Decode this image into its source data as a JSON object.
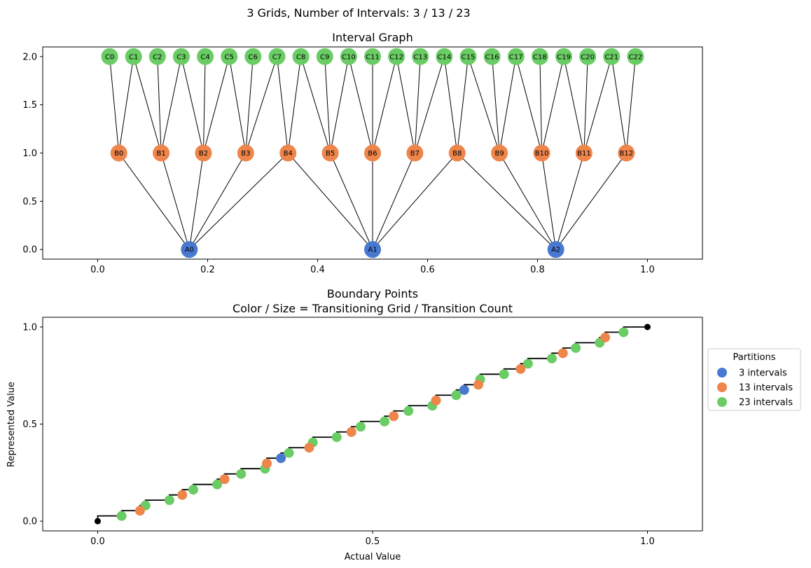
{
  "figure": {
    "suptitle": "3 Grids, Number of Intervals: 3 / 13 / 23"
  },
  "colors": {
    "grid_3": "#4878d0",
    "grid_13": "#ee854a",
    "grid_23": "#6acc64",
    "step": "#000000"
  },
  "chart_data": [
    {
      "type": "network",
      "title": "Interval Graph",
      "xlim": [
        -0.1,
        1.1
      ],
      "ylim": [
        -0.1,
        2.1
      ],
      "x_ticks": [
        0.0,
        0.2,
        0.4,
        0.6,
        0.8,
        1.0
      ],
      "x_tick_labels": [
        "0.0",
        "0.2",
        "0.4",
        "0.6",
        "0.8",
        "1.0"
      ],
      "y_ticks": [
        0.0,
        0.5,
        1.0,
        1.5,
        2.0
      ],
      "y_tick_labels": [
        "0.0",
        "0.5",
        "1.0",
        "1.5",
        "2.0"
      ],
      "levels": [
        {
          "prefix": "A",
          "count": 3,
          "y": 0,
          "color": "#4878d0"
        },
        {
          "prefix": "B",
          "count": 13,
          "y": 1,
          "color": "#ee854a"
        },
        {
          "prefix": "C",
          "count": 23,
          "y": 2,
          "color": "#6acc64"
        }
      ],
      "edge_rule": "nodes on adjacent levels are connected when their intervals overlap"
    },
    {
      "type": "scatter",
      "title": "Boundary Points",
      "subtitle": "Color / Size = Transitioning Grid / Transition Count",
      "xlabel": "Actual Value",
      "ylabel": "Represented Value",
      "xlim": [
        -0.1,
        1.1
      ],
      "ylim": [
        -0.05,
        1.05
      ],
      "x_ticks": [
        0.0,
        0.5,
        1.0
      ],
      "x_tick_labels": [
        "0.0",
        "0.5",
        "1.0"
      ],
      "y_ticks": [
        0.0,
        0.5,
        1.0
      ],
      "y_tick_labels": [
        "0.0",
        "0.5",
        "1.0"
      ],
      "legend_title": "Partitions",
      "legend_position": "right, outside plot",
      "series": [
        {
          "name": "3 intervals",
          "count": 3,
          "color": "#4878d0"
        },
        {
          "name": "13 intervals",
          "count": 13,
          "color": "#ee854a"
        },
        {
          "name": "23 intervals",
          "count": 23,
          "color": "#6acc64"
        }
      ],
      "endpoints": [
        [
          0,
          0
        ],
        [
          1,
          1
        ]
      ],
      "step_rule": "boundaries are the union of k/3, k/13 and k/23; step height increases at each boundary"
    }
  ]
}
